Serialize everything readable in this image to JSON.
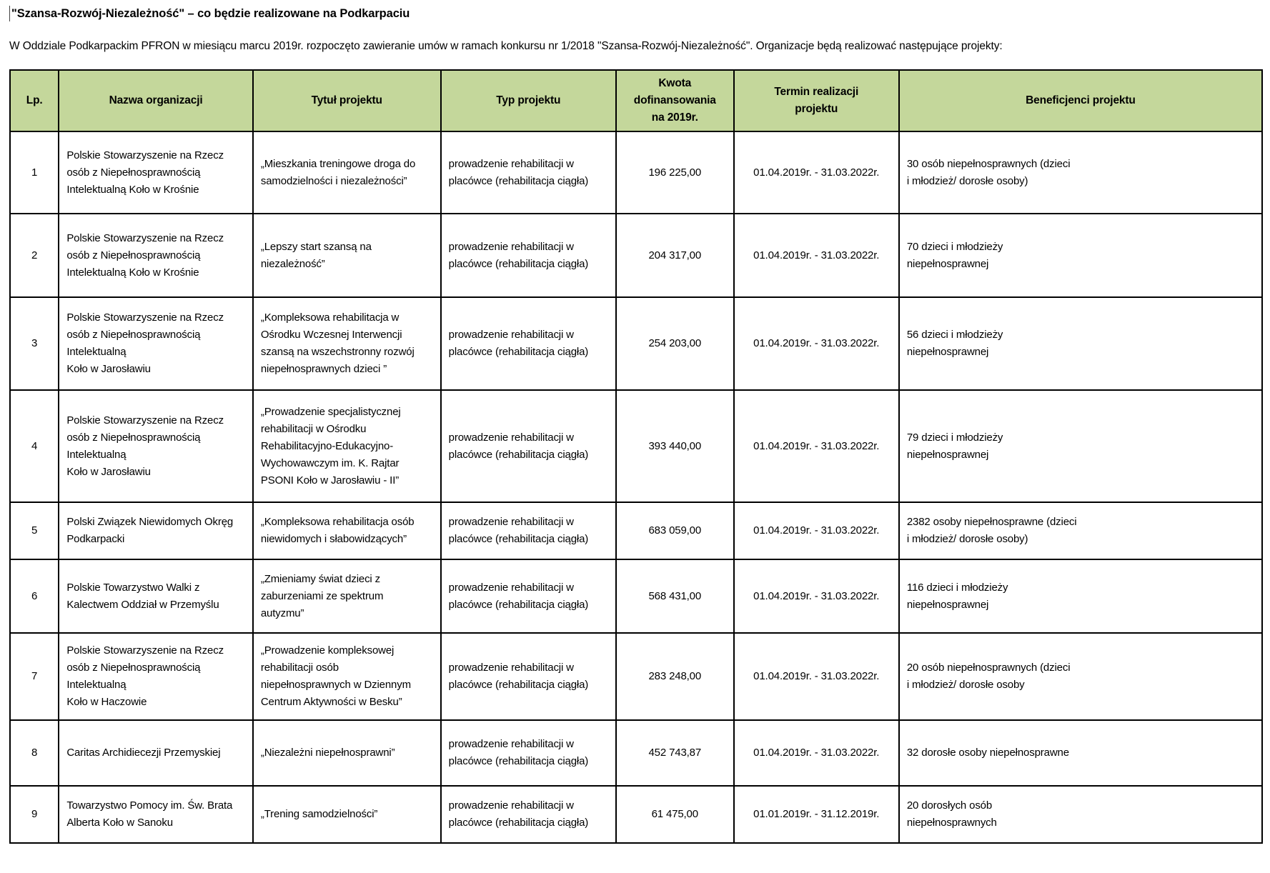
{
  "page": {
    "title": "\"Szansa-Rozwój-Niezależność\" – co będzie realizowane na Podkarpaciu",
    "intro": "W Oddziale Podkarpackim PFRON w miesiącu marcu 2019r. rozpoczęto zawieranie umów w ramach konkursu nr 1/2018 \"Szansa-Rozwój-Niezależność\". Organizacje będą realizować następujące projekty:"
  },
  "table": {
    "header_bg": "#c4d79b",
    "headers": [
      "Lp.",
      "Nazwa organizacji",
      "Tytuł projektu",
      "Typ projektu",
      "Kwota\ndofinansowania\nna 2019r.",
      "Termin realizacji\nprojektu",
      "Beneficjenci projektu"
    ],
    "rows": [
      {
        "lp": "1",
        "organizacja": "Polskie Stowarzyszenie na Rzecz\nosób z Niepełnosprawnością\nIntelektualną Koło w Krośnie",
        "tytul": "„Mieszkania treningowe droga do\nsamodzielności i niezależności”",
        "typ": "prowadzenie rehabilitacji w\nplacówce (rehabilitacja ciągła)",
        "kwota": "196 225,00",
        "termin": "01.04.2019r. - 31.03.2022r.",
        "beneficjenci": "30 osób niepełnosprawnych (dzieci\ni młodzież/ dorosłe osoby)"
      },
      {
        "lp": "2",
        "organizacja": "Polskie Stowarzyszenie na Rzecz\nosób z Niepełnosprawnością\nIntelektualną Koło w Krośnie",
        "tytul": "„Lepszy start szansą na\nniezależność”",
        "typ": "prowadzenie rehabilitacji w\nplacówce (rehabilitacja ciągła)",
        "kwota": "204 317,00",
        "termin": "01.04.2019r. - 31.03.2022r.",
        "beneficjenci": "70 dzieci i młodzieży\nniepełnosprawnej"
      },
      {
        "lp": "3",
        "organizacja": "Polskie Stowarzyszenie na Rzecz\nosób z Niepełnosprawnością\nIntelektualną\nKoło w Jarosławiu",
        "tytul": "„Kompleksowa rehabilitacja w\nOśrodku Wczesnej Interwencji\nszansą na wszechstronny rozwój\nniepełnosprawnych dzieci ”",
        "typ": "prowadzenie rehabilitacji w\nplacówce (rehabilitacja ciągła)",
        "kwota": "254 203,00",
        "termin": "01.04.2019r. - 31.03.2022r.",
        "beneficjenci": "56 dzieci i młodzieży\nniepełnosprawnej"
      },
      {
        "lp": "4",
        "organizacja": "Polskie Stowarzyszenie na Rzecz\nosób z Niepełnosprawnością\nIntelektualną\nKoło w Jarosławiu",
        "tytul": "„Prowadzenie specjalistycznej\nrehabilitacji w Ośrodku\nRehabilitacyjno-Edukacyjno-\nWychowawczym im. K. Rajtar\nPSONI Koło w Jarosławiu - II”",
        "typ": "prowadzenie rehabilitacji w\nplacówce (rehabilitacja ciągła)",
        "kwota": "393 440,00",
        "termin": "01.04.2019r. - 31.03.2022r.",
        "beneficjenci": "79 dzieci i młodzieży\nniepełnosprawnej"
      },
      {
        "lp": "5",
        "organizacja": "Polski Związek Niewidomych Okręg\nPodkarpacki",
        "tytul": "„Kompleksowa rehabilitacja osób\nniewidomych i słabowidzących”",
        "typ": "prowadzenie rehabilitacji w\nplacówce (rehabilitacja ciągła)",
        "kwota": "683 059,00",
        "termin": "01.04.2019r. - 31.03.2022r.",
        "beneficjenci": "2382 osoby niepełnosprawne (dzieci\ni młodzież/ dorosłe osoby)"
      },
      {
        "lp": "6",
        "organizacja": "Polskie Towarzystwo Walki z\nKalectwem Oddział w Przemyślu",
        "tytul": "„Zmieniamy świat dzieci z\nzaburzeniami ze spektrum\nautyzmu”",
        "typ": "prowadzenie rehabilitacji w\nplacówce (rehabilitacja ciągła)",
        "kwota": "568 431,00",
        "termin": "01.04.2019r. - 31.03.2022r.",
        "beneficjenci": "116 dzieci i młodzieży\nniepełnosprawnej"
      },
      {
        "lp": "7",
        "organizacja": "Polskie Stowarzyszenie na Rzecz\nosób z Niepełnosprawnością\nIntelektualną\nKoło w Haczowie",
        "tytul": "„Prowadzenie kompleksowej\nrehabilitacji osób\nniepełnosprawnych w Dziennym\nCentrum Aktywności w Besku”",
        "typ": "prowadzenie rehabilitacji w\nplacówce (rehabilitacja ciągła)",
        "kwota": "283 248,00",
        "termin": "01.04.2019r. - 31.03.2022r.",
        "beneficjenci": "20 osób niepełnosprawnych (dzieci\ni młodzież/ dorosłe osoby"
      },
      {
        "lp": "8",
        "organizacja": "Caritas Archidiecezji Przemyskiej",
        "tytul": "„Niezależni niepełnosprawni”",
        "typ": "prowadzenie rehabilitacji w\nplacówce (rehabilitacja ciągła)",
        "kwota": "452 743,87",
        "termin": "01.04.2019r. - 31.03.2022r.",
        "beneficjenci": "32 dorosłe osoby niepełnosprawne"
      },
      {
        "lp": "9",
        "organizacja": "Towarzystwo Pomocy im. Św. Brata\nAlberta Koło w Sanoku",
        "tytul": "„Trening samodzielności”",
        "typ": "prowadzenie rehabilitacji w\nplacówce (rehabilitacja ciągła)",
        "kwota": "61 475,00",
        "termin": "01.01.2019r. - 31.12.2019r.",
        "beneficjenci": "20 dorosłych osób\nniepełnosprawnych"
      }
    ]
  }
}
